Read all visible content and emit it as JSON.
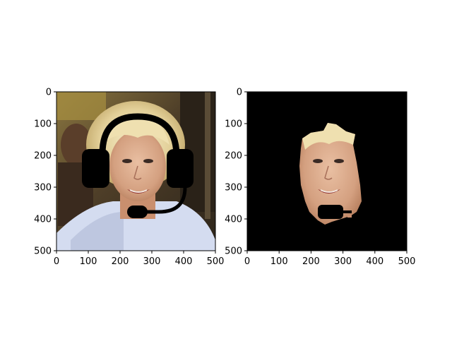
{
  "chart_data": [
    {
      "type": "image",
      "title": "",
      "xlabel": "",
      "ylabel": "",
      "xlim": [
        0,
        500
      ],
      "ylim": [
        500,
        0
      ],
      "x_ticks": [
        "0",
        "100",
        "200",
        "300",
        "400",
        "500"
      ],
      "y_ticks": [
        "0",
        "100",
        "200",
        "300",
        "400",
        "500"
      ],
      "image": {
        "content": "portrait photo of a smiling blonde woman with a black headset drawn over her head",
        "overlay": "black headset with over-head band, ear cups and boom microphone",
        "background_colors": [
          "#7a6a3a",
          "#3a2c1e",
          "#5a4a34"
        ],
        "hair_color": "#ead9a8",
        "skin_color": "#d9a98a",
        "clothing_color": "#cfd8ee"
      }
    },
    {
      "type": "image",
      "title": "",
      "xlabel": "",
      "ylabel": "",
      "xlim": [
        0,
        500
      ],
      "ylim": [
        500,
        0
      ],
      "x_ticks": [
        "0",
        "100",
        "200",
        "300",
        "400",
        "500"
      ],
      "y_ticks": [
        "0",
        "100",
        "200",
        "300",
        "400",
        "500"
      ],
      "image": {
        "content": "segmented face region of the same woman shown on a black background",
        "overlay": "black block over the mouth area where the microphone was",
        "background_color": "#000000",
        "skin_color": "#d9a98a"
      }
    }
  ]
}
